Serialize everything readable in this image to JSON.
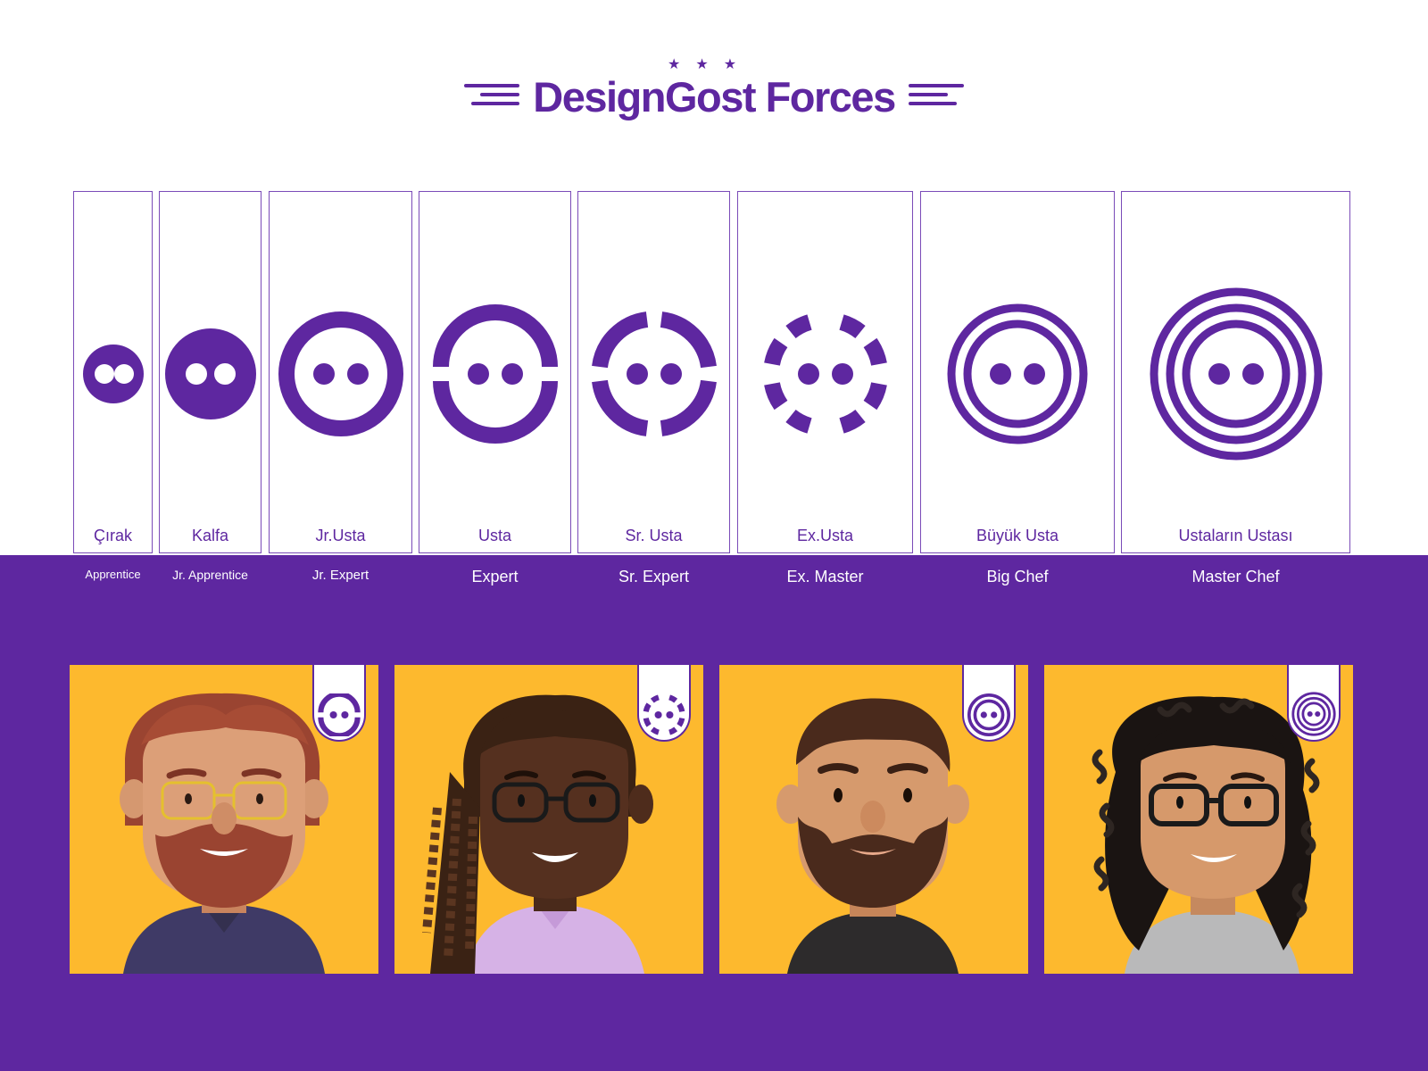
{
  "header": {
    "stars": "★★★",
    "brand_title": "DesignGost Forces"
  },
  "colors": {
    "brand_purple": "#5e27a0",
    "card_yellow": "#fdb92e",
    "background": "#ffffff"
  },
  "ranks": [
    {
      "name": "Çırak",
      "english": "Apprentice",
      "icon": "small-face-icon"
    },
    {
      "name": "Kalfa",
      "english": "Jr. Apprentice",
      "icon": "face-icon"
    },
    {
      "name": "Jr.Usta",
      "english": "Jr. Expert",
      "icon": "ring-face-icon"
    },
    {
      "name": "Usta",
      "english": "Expert",
      "icon": "split-ring-face-icon"
    },
    {
      "name": "Sr. Usta",
      "english": "Sr. Expert",
      "icon": "quartered-ring-face-icon"
    },
    {
      "name": "Ex.Usta",
      "english": "Ex. Master",
      "icon": "dotted-ring-face-icon"
    },
    {
      "name": "Büyük Usta",
      "english": "Big Chef",
      "icon": "double-ring-face-icon"
    },
    {
      "name": "Ustaların Ustası",
      "english": "Master Chef",
      "icon": "triple-ring-face-icon"
    }
  ],
  "avatars": [
    {
      "name": "auburn-bearded-man",
      "badge_icon": "split-ring-face-icon"
    },
    {
      "name": "braided-woman",
      "badge_icon": "dotted-ring-face-icon"
    },
    {
      "name": "bearded-man",
      "badge_icon": "double-ring-face-icon"
    },
    {
      "name": "curly-haired-woman",
      "badge_icon": "triple-ring-face-icon"
    }
  ]
}
